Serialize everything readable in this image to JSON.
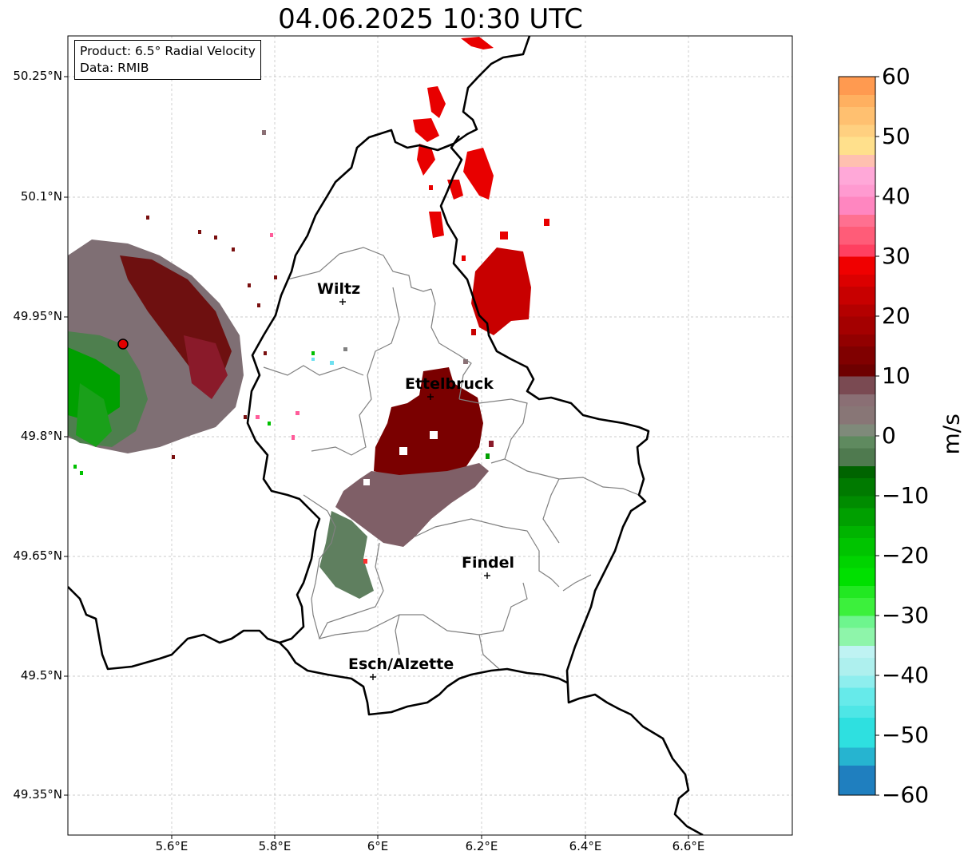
{
  "title": "04.06.2025 10:30 UTC",
  "info": {
    "product": "Product: 6.5° Radial Velocity",
    "source": "Data: RMIB"
  },
  "lat_ticks": [
    "50.25°N",
    "50.1°N",
    "49.95°N",
    "49.8°N",
    "49.65°N",
    "49.5°N",
    "49.35°N"
  ],
  "lon_ticks": [
    "5.6°E",
    "5.8°E",
    "6°E",
    "6.2°E",
    "6.4°E",
    "6.6°E"
  ],
  "cities": [
    {
      "name": "Wiltz"
    },
    {
      "name": "Ettelbruck"
    },
    {
      "name": "Findel"
    },
    {
      "name": "Esch/Alzette"
    }
  ],
  "colorbar": {
    "label": "m/s",
    "ticks": [
      "60",
      "50",
      "40",
      "30",
      "20",
      "10",
      "0",
      "−10",
      "−20",
      "−30",
      "−40",
      "−50",
      "−60"
    ],
    "min": -60,
    "max": 60,
    "colors": {
      "neg_low": "#1f7fbf",
      "cyan": "#2ee0e0",
      "light_cyan": "#aef0ee",
      "light_green": "#6ef58e",
      "green": "#00e000",
      "dark_green": "#006400",
      "gray_green": "#5f8a5f",
      "gray_mauve": "#8a6f74",
      "dark_red": "#6e0000",
      "red": "#f00000",
      "pink": "#ff5c78",
      "light_pink": "#ff9ad0",
      "yellow": "#ffe08c",
      "orange": "#ff9a50"
    }
  }
}
